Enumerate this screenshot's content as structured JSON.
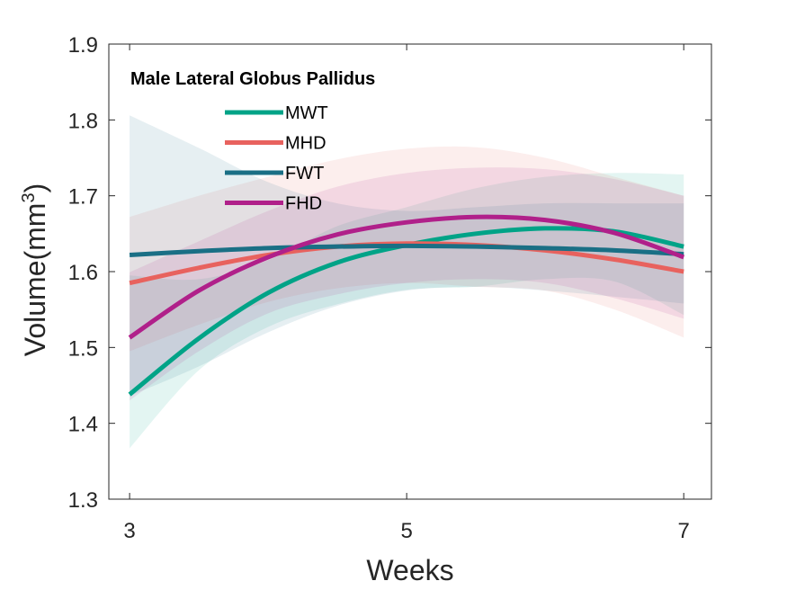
{
  "chart_data": {
    "type": "line",
    "title": "Male Lateral Globus Pallidus",
    "xlabel": "Weeks",
    "ylabel": "Volume(mm",
    "ylabel_sup": "3",
    "ylabel_close": ")",
    "xlim": [
      2.85,
      7.2
    ],
    "ylim": [
      1.3,
      1.9
    ],
    "xticks": [
      3,
      5,
      7
    ],
    "yticks": [
      1.3,
      1.4,
      1.5,
      1.6,
      1.7,
      1.8,
      1.9
    ],
    "ytick_labels": [
      "1.3",
      "1.4",
      "1.5",
      "1.6",
      "1.7",
      "1.8",
      "1.9"
    ],
    "xtick_labels": [
      "3",
      "5",
      "7"
    ],
    "legend_position": "top-left",
    "grid": false,
    "series": [
      {
        "name": "MWT",
        "color": "#00A387",
        "x": [
          3,
          3.5,
          4,
          4.5,
          5,
          5.5,
          6,
          6.5,
          7
        ],
        "y": [
          1.438,
          1.512,
          1.572,
          1.612,
          1.635,
          1.65,
          1.657,
          1.653,
          1.633
        ],
        "ci_lower": [
          1.367,
          1.47,
          1.527,
          1.557,
          1.576,
          1.58,
          1.59,
          1.587,
          1.543
        ],
        "ci_upper": [
          1.595,
          1.59,
          1.615,
          1.66,
          1.685,
          1.71,
          1.725,
          1.73,
          1.728
        ]
      },
      {
        "name": "MHD",
        "color": "#E8625E",
        "x": [
          3,
          3.5,
          4,
          4.5,
          5,
          5.5,
          6,
          6.5,
          7
        ],
        "y": [
          1.585,
          1.605,
          1.622,
          1.633,
          1.637,
          1.635,
          1.628,
          1.616,
          1.6
        ],
        "ci_lower": [
          1.495,
          1.53,
          1.56,
          1.578,
          1.585,
          1.58,
          1.575,
          1.55,
          1.513
        ],
        "ci_upper": [
          1.672,
          1.7,
          1.725,
          1.748,
          1.762,
          1.764,
          1.75,
          1.725,
          1.7
        ]
      },
      {
        "name": "FWT",
        "color": "#1A6F85",
        "x": [
          3,
          3.5,
          4,
          4.5,
          5,
          5.5,
          6,
          6.5,
          7
        ],
        "y": [
          1.622,
          1.627,
          1.631,
          1.633,
          1.634,
          1.633,
          1.631,
          1.628,
          1.623
        ],
        "ci_lower": [
          1.436,
          1.475,
          1.52,
          1.555,
          1.575,
          1.58,
          1.575,
          1.567,
          1.558
        ],
        "ci_upper": [
          1.806,
          1.763,
          1.718,
          1.69,
          1.68,
          1.685,
          1.69,
          1.69,
          1.69
        ]
      },
      {
        "name": "FHD",
        "color": "#B0208A",
        "x": [
          3,
          3.5,
          4,
          4.5,
          5,
          5.5,
          6,
          6.5,
          7
        ],
        "y": [
          1.513,
          1.575,
          1.619,
          1.649,
          1.665,
          1.672,
          1.668,
          1.651,
          1.619
        ],
        "ci_lower": [
          1.43,
          1.495,
          1.545,
          1.57,
          1.585,
          1.59,
          1.585,
          1.565,
          1.538
        ],
        "ci_upper": [
          1.599,
          1.64,
          1.68,
          1.712,
          1.73,
          1.737,
          1.735,
          1.722,
          1.7
        ]
      }
    ]
  }
}
